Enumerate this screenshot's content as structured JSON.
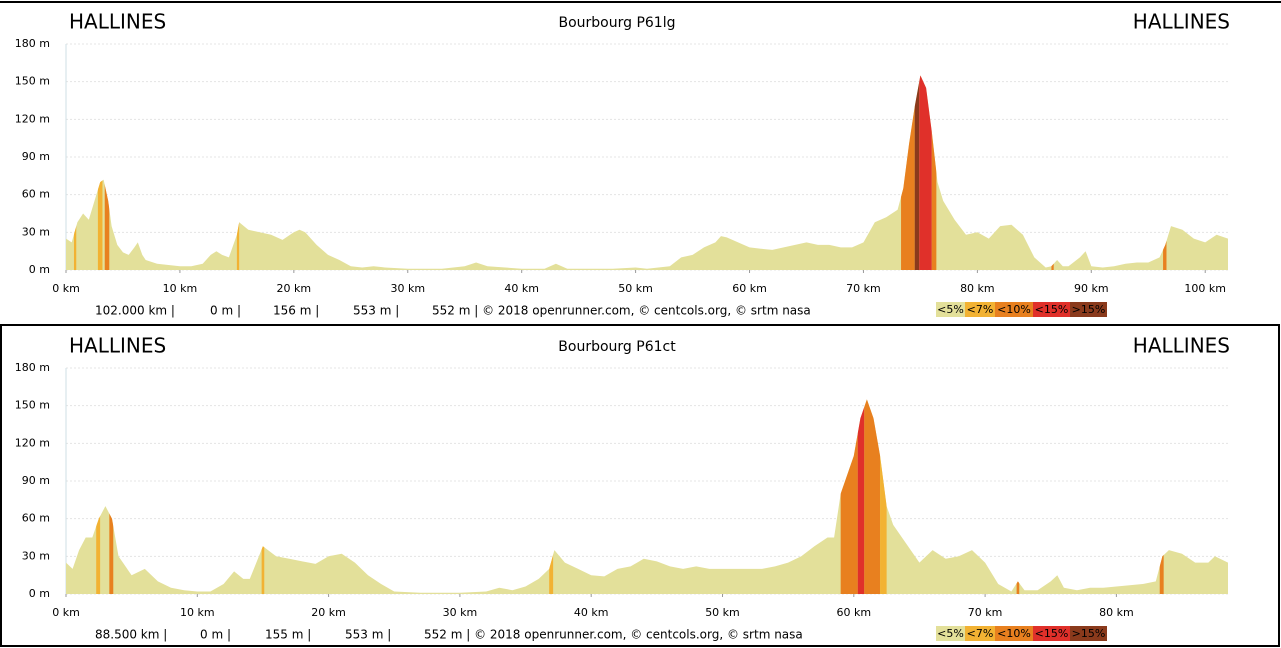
{
  "chart_data": [
    {
      "type": "area",
      "title": "Bourbourg P61lg",
      "start_label": "HALLINES",
      "end_label": "HALLINES",
      "color": "#e3e09a",
      "x": [
        0,
        0.5,
        1,
        1.5,
        2,
        2.5,
        3,
        3.3,
        3.7,
        4,
        4.5,
        5,
        5.5,
        6,
        6.3,
        6.7,
        7,
        8,
        9,
        10,
        11,
        12,
        12.7,
        13.2,
        13.7,
        14.3,
        15,
        15.2,
        16,
        17,
        18,
        19,
        20,
        20.5,
        21,
        22,
        23,
        24,
        25,
        26,
        27,
        28,
        30,
        33,
        35,
        36,
        37,
        40,
        42,
        43,
        44,
        48,
        50,
        51,
        52,
        53,
        54,
        55,
        56,
        57,
        57.5,
        58,
        59,
        60,
        61,
        62,
        63,
        64,
        65,
        66,
        67,
        68,
        69,
        70,
        71,
        72,
        73,
        73.5,
        74,
        74.5,
        75,
        75.5,
        76,
        76.5,
        77,
        78,
        79,
        80,
        81,
        82,
        83,
        84,
        85,
        86,
        86.5,
        87,
        87.5,
        88,
        89,
        89.5,
        90,
        91,
        92,
        93,
        94,
        95,
        96,
        96.5,
        97,
        98,
        99,
        100,
        101,
        102
      ],
      "values": [
        25,
        22,
        38,
        45,
        40,
        55,
        70,
        72,
        55,
        35,
        20,
        14,
        12,
        18,
        22,
        12,
        8,
        5,
        4,
        3,
        3,
        5,
        12,
        15,
        12,
        10,
        28,
        38,
        32,
        30,
        28,
        24,
        30,
        32,
        30,
        20,
        12,
        8,
        3,
        2,
        3,
        2,
        1,
        1,
        3,
        6,
        3,
        1,
        1,
        5,
        1,
        1,
        2,
        1,
        2,
        3,
        10,
        12,
        18,
        22,
        27,
        26,
        22,
        18,
        17,
        16,
        18,
        20,
        22,
        20,
        20,
        18,
        18,
        22,
        38,
        42,
        48,
        65,
        100,
        130,
        155,
        145,
        110,
        70,
        55,
        40,
        28,
        30,
        25,
        35,
        36,
        28,
        10,
        2,
        3,
        8,
        3,
        3,
        10,
        15,
        3,
        2,
        3,
        5,
        6,
        6,
        10,
        20,
        35,
        32,
        25,
        22,
        28,
        25
      ],
      "bands": [
        {
          "x": [
            0.7,
            0.9
          ],
          "legend": 1
        },
        {
          "x": [
            2.8,
            3.2
          ],
          "legend": 1
        },
        {
          "x": [
            3.4,
            3.8
          ],
          "legend": 2
        },
        {
          "x": [
            15.0,
            15.2
          ],
          "legend": 1
        },
        {
          "x": [
            73.3,
            74.5
          ],
          "legend": 2
        },
        {
          "x": [
            74.5,
            74.9
          ],
          "legend": 4
        },
        {
          "x": [
            74.9,
            76.0
          ],
          "legend": 3
        },
        {
          "x": [
            76.0,
            76.4
          ],
          "legend": 2
        },
        {
          "x": [
            86.5,
            86.7
          ],
          "legend": 2
        },
        {
          "x": [
            96.3,
            96.6
          ],
          "legend": 2
        }
      ],
      "xlim": [
        0,
        102
      ],
      "xticks": [
        {
          "value": 0,
          "label": "0 km"
        },
        {
          "value": 10,
          "label": "10 km"
        },
        {
          "value": 20,
          "label": "20 km"
        },
        {
          "value": 30,
          "label": "30 km"
        },
        {
          "value": 40,
          "label": "40 km"
        },
        {
          "value": 50,
          "label": "50 km"
        },
        {
          "value": 60,
          "label": "60 km"
        },
        {
          "value": 70,
          "label": "70 km"
        },
        {
          "value": 80,
          "label": "80 km"
        },
        {
          "value": 90,
          "label": "90 km"
        },
        {
          "value": 100,
          "label": "100 km"
        }
      ],
      "ylim": [
        0,
        180
      ],
      "yticks": [
        {
          "value": 0,
          "label": "0 m"
        },
        {
          "value": 30,
          "label": "30 m"
        },
        {
          "value": 60,
          "label": "60 m"
        },
        {
          "value": 90,
          "label": "90 m"
        },
        {
          "value": 120,
          "label": "120 m"
        },
        {
          "value": 150,
          "label": "150 m"
        },
        {
          "value": 180,
          "label": "180 m"
        }
      ],
      "grid": true,
      "stats": [
        "102.000 km |",
        "0 m |",
        "156 m |",
        "553 m |",
        "552 m | © 2018 openrunner.com, © centcols.org, © srtm nasa"
      ],
      "legend": [
        {
          "name": "<5%",
          "color": "#e3e09a"
        },
        {
          "name": "<7%",
          "color": "#f2b233"
        },
        {
          "name": "<10%",
          "color": "#e8801f"
        },
        {
          "name": "<15%",
          "color": "#e0302a"
        },
        {
          "name": ">15%",
          "color": "#8a3a1c"
        }
      ]
    },
    {
      "type": "area",
      "title": "Bourbourg P61ct",
      "start_label": "HALLINES",
      "end_label": "HALLINES",
      "color": "#e3e09a",
      "x": [
        0,
        0.5,
        1,
        1.5,
        2,
        2.5,
        3,
        3.5,
        4,
        5,
        6,
        7,
        8,
        9,
        10,
        11,
        12,
        12.8,
        13.5,
        14,
        15,
        16,
        17,
        18,
        19,
        20,
        21,
        22,
        23,
        24,
        25,
        27,
        30,
        32,
        33,
        34,
        35,
        36,
        36.8,
        37.2,
        38,
        39,
        40,
        41,
        42,
        43,
        44,
        45,
        46,
        47,
        48,
        49,
        50,
        51,
        52,
        53,
        54,
        55,
        56,
        57,
        58,
        58.5,
        59,
        60,
        60.5,
        61,
        61.5,
        62,
        62.5,
        63,
        64,
        65,
        66,
        67,
        68,
        69,
        70,
        71,
        72,
        72.5,
        73,
        74,
        75,
        75.5,
        76,
        77,
        78,
        79,
        80,
        82,
        83,
        83.5,
        84,
        85,
        86,
        87,
        87.5,
        88.5
      ],
      "values": [
        25,
        20,
        35,
        45,
        45,
        60,
        70,
        60,
        30,
        15,
        20,
        10,
        5,
        3,
        2,
        2,
        8,
        18,
        12,
        12,
        38,
        30,
        28,
        26,
        24,
        30,
        32,
        25,
        15,
        8,
        2,
        1,
        1,
        2,
        5,
        3,
        6,
        12,
        20,
        35,
        25,
        20,
        15,
        14,
        20,
        22,
        28,
        26,
        22,
        20,
        22,
        20,
        20,
        20,
        20,
        20,
        22,
        25,
        30,
        38,
        45,
        45,
        80,
        110,
        140,
        155,
        140,
        110,
        70,
        55,
        40,
        25,
        35,
        28,
        30,
        35,
        25,
        8,
        2,
        10,
        3,
        3,
        10,
        15,
        5,
        3,
        5,
        5,
        6,
        8,
        10,
        30,
        35,
        32,
        25,
        25,
        30,
        25
      ],
      "bands": [
        {
          "x": [
            2.3,
            2.6
          ],
          "legend": 1
        },
        {
          "x": [
            3.3,
            3.6
          ],
          "legend": 2
        },
        {
          "x": [
            14.9,
            15.1
          ],
          "legend": 1
        },
        {
          "x": [
            36.8,
            37.1
          ],
          "legend": 1
        },
        {
          "x": [
            59.0,
            60.3
          ],
          "legend": 2
        },
        {
          "x": [
            60.3,
            60.8
          ],
          "legend": 3
        },
        {
          "x": [
            60.8,
            62.0
          ],
          "legend": 2
        },
        {
          "x": [
            62.0,
            62.5
          ],
          "legend": 1
        },
        {
          "x": [
            72.4,
            72.6
          ],
          "legend": 2
        },
        {
          "x": [
            83.3,
            83.6
          ],
          "legend": 2
        }
      ],
      "xlim": [
        0,
        88.5
      ],
      "xticks": [
        {
          "value": 0,
          "label": "0 km"
        },
        {
          "value": 10,
          "label": "10 km"
        },
        {
          "value": 20,
          "label": "20 km"
        },
        {
          "value": 30,
          "label": "30 km"
        },
        {
          "value": 40,
          "label": "40 km"
        },
        {
          "value": 50,
          "label": "50 km"
        },
        {
          "value": 60,
          "label": "60 km"
        },
        {
          "value": 70,
          "label": "70 km"
        },
        {
          "value": 80,
          "label": "80 km"
        }
      ],
      "ylim": [
        0,
        180
      ],
      "yticks": [
        {
          "value": 0,
          "label": "0 m"
        },
        {
          "value": 30,
          "label": "30 m"
        },
        {
          "value": 60,
          "label": "60 m"
        },
        {
          "value": 90,
          "label": "90 m"
        },
        {
          "value": 120,
          "label": "120 m"
        },
        {
          "value": 150,
          "label": "150 m"
        },
        {
          "value": 180,
          "label": "180 m"
        }
      ],
      "grid": true,
      "stats": [
        "88.500 km |",
        "0 m |",
        "155 m |",
        "553 m |",
        "552 m | © 2018 openrunner.com, © centcols.org, © srtm nasa"
      ],
      "legend": [
        {
          "name": "<5%",
          "color": "#e3e09a"
        },
        {
          "name": "<7%",
          "color": "#f2b233"
        },
        {
          "name": "<10%",
          "color": "#e8801f"
        },
        {
          "name": "<15%",
          "color": "#e0302a"
        },
        {
          "name": ">15%",
          "color": "#8a3a1c"
        }
      ]
    }
  ]
}
